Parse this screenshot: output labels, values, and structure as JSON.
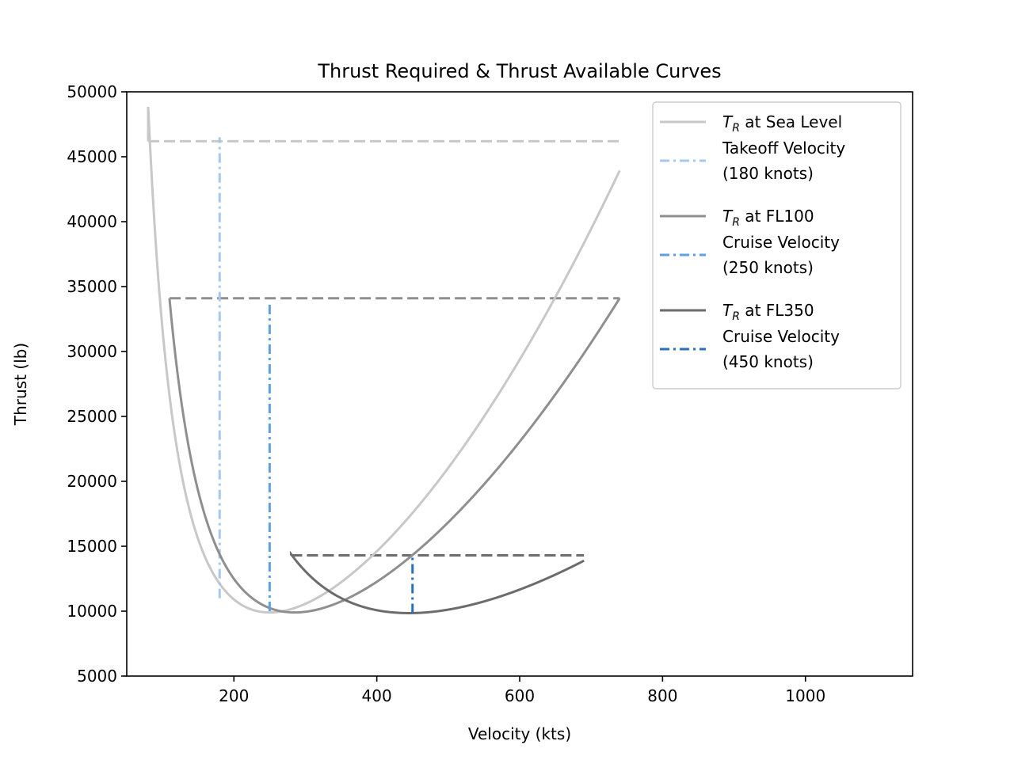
{
  "chart_data": {
    "type": "line",
    "title": "Thrust Required & Thrust Available Curves",
    "xlabel": "Velocity (kts)",
    "ylabel": "Thrust (lb)",
    "xlim": [
      50,
      1150
    ],
    "ylim": [
      5000,
      50000
    ],
    "xticks": [
      200,
      400,
      600,
      800,
      1000
    ],
    "yticks": [
      5000,
      10000,
      15000,
      20000,
      25000,
      30000,
      35000,
      40000,
      45000,
      50000
    ],
    "grid": false,
    "legend_position": "upper right",
    "series": [
      {
        "name": "T_R at Sea Level",
        "legend_main": "T",
        "legend_sub": "R",
        "legend_rest": " at Sea Level",
        "color": "#c8c8c8",
        "style": "solid",
        "curve": {
          "v_min": 250,
          "t_min": 9900,
          "x_start": 80,
          "x_end": 740
        }
      },
      {
        "name": "Takeoff Velocity (180 knots)",
        "legend_lines": [
          "Takeoff Velocity",
          "(180 knots)"
        ],
        "color": "#a4c8ef",
        "style": "dashdot",
        "x": [
          180,
          180
        ],
        "y": [
          11000,
          46500
        ]
      },
      {
        "name": "T_R at FL100",
        "legend_main": "T",
        "legend_sub": "R",
        "legend_rest": " at FL100",
        "color": "#8f8f8f",
        "style": "solid",
        "curve": {
          "v_min": 285,
          "t_min": 9900,
          "x_start": 110,
          "x_end": 740
        }
      },
      {
        "name": "Cruise Velocity (250 knots)",
        "legend_lines": [
          "Cruise Velocity",
          "(250 knots)"
        ],
        "color": "#5e9fe6",
        "style": "dashdot",
        "x": [
          250,
          250
        ],
        "y": [
          10000,
          33800
        ]
      },
      {
        "name": "T_R at FL350",
        "legend_main": "T",
        "legend_sub": "R",
        "legend_rest": " at FL350",
        "color": "#6c6c6c",
        "style": "solid",
        "curve": {
          "v_min": 445,
          "t_min": 9850,
          "x_start": 280,
          "x_end": 690
        }
      },
      {
        "name": "Cruise Velocity (450 knots)",
        "legend_lines": [
          "Cruise Velocity",
          "(450 knots)"
        ],
        "color": "#2a6fbd",
        "style": "dashdot",
        "x": [
          450,
          450
        ],
        "y": [
          9850,
          14300
        ]
      }
    ],
    "thrust_available": [
      {
        "color": "#c8c8c8",
        "x": [
          80,
          740
        ],
        "y": [
          46200,
          46200
        ]
      },
      {
        "color": "#8f8f8f",
        "x": [
          110,
          740
        ],
        "y": [
          34100,
          34100
        ]
      },
      {
        "color": "#6c6c6c",
        "x": [
          280,
          690
        ],
        "y": [
          14300,
          14300
        ]
      }
    ]
  }
}
